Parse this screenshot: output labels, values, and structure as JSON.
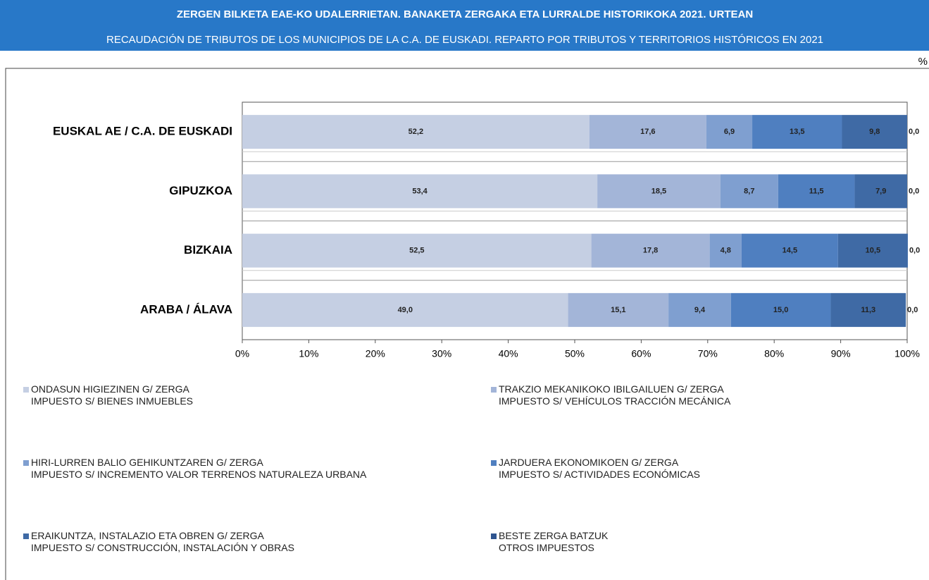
{
  "chart_data": {
    "type": "stacked_barh",
    "title": "ZERGEN BILKETA EAE-KO UDALERRIETAN. BANAKETA ZERGAKA ETA LURRALDE HISTORIKOKA 2021. URTEAN",
    "subtitle": "RECAUDACIÓN DE TRIBUTOS DE LOS MUNICIPIOS DE LA C.A. DE EUSKADI. REPARTO POR TRIBUTOS Y TERRITORIOS HISTÓRICOS EN 2021",
    "unit_label": "%",
    "categories": [
      "EUSKAL AE / C.A. DE EUSKADI",
      "GIPUZKOA",
      "BIZKAIA",
      "ARABA / ÁLAVA"
    ],
    "xlim": [
      0,
      100
    ],
    "xticks": [
      {
        "value": 0,
        "label": "0%"
      },
      {
        "value": 10,
        "label": "10%"
      },
      {
        "value": 20,
        "label": "20%"
      },
      {
        "value": 30,
        "label": "30%"
      },
      {
        "value": 40,
        "label": "40%"
      },
      {
        "value": 50,
        "label": "50%"
      },
      {
        "value": 60,
        "label": "60%"
      },
      {
        "value": 70,
        "label": "70%"
      },
      {
        "value": 80,
        "label": "80%"
      },
      {
        "value": 90,
        "label": "90%"
      },
      {
        "value": 100,
        "label": "100%"
      }
    ],
    "series": [
      {
        "name": "ONDASUN HIGIEZINEN G/ ZERGA\nIMPUESTO S/ BIENES INMUEBLES",
        "color": "#c5cfe3",
        "values": [
          52.2,
          53.4,
          52.5,
          49.0
        ],
        "value_labels": [
          "52,2",
          "53,4",
          "52,5",
          "49,0"
        ]
      },
      {
        "name": "TRAKZIO MEKANIKOKO IBILGAILUEN G/ ZERGA\nIMPUESTO S/ VEHÍCULOS TRACCIÓN MECÁNICA",
        "color": "#a3b5d8",
        "values": [
          17.6,
          18.5,
          17.8,
          15.1
        ],
        "value_labels": [
          "17,6",
          "18,5",
          "17,8",
          "15,1"
        ]
      },
      {
        "name": "HIRI-LURREN BALIO GEHIKUNTZAREN G/ ZERGA\nIMPUESTO S/ INCREMENTO VALOR TERRENOS NATURALEZA URBANA",
        "color": "#7f9fd0",
        "values": [
          6.9,
          8.7,
          4.8,
          9.4
        ],
        "value_labels": [
          "6,9",
          "8,7",
          "4,8",
          "9,4"
        ]
      },
      {
        "name": "JARDUERA EKONOMIKOEN G/ ZERGA\nIMPUESTO S/ ACTIVIDADES ECONÓMICAS",
        "color": "#4f7fc0",
        "values": [
          13.5,
          11.5,
          14.5,
          15.0
        ],
        "value_labels": [
          "13,5",
          "11,5",
          "14,5",
          "15,0"
        ]
      },
      {
        "name": "ERAIKUNTZA, INSTALAZIO ETA OBREN G/ ZERGA\nIMPUESTO S/ CONSTRUCCIÓN, INSTALACIÓN Y OBRAS",
        "color": "#3f6aa5",
        "values": [
          9.8,
          7.9,
          10.5,
          11.3
        ],
        "value_labels": [
          "9,8",
          "7,9",
          "10,5",
          "11,3"
        ]
      },
      {
        "name": "BESTE ZERGA BATZUK\nOTROS IMPUESTOS",
        "color": "#2f5590",
        "values": [
          0.0,
          0.0,
          0.0,
          0.0
        ],
        "value_labels": [
          "0,0",
          "0,0",
          "0,0",
          "0,0"
        ]
      }
    ]
  }
}
